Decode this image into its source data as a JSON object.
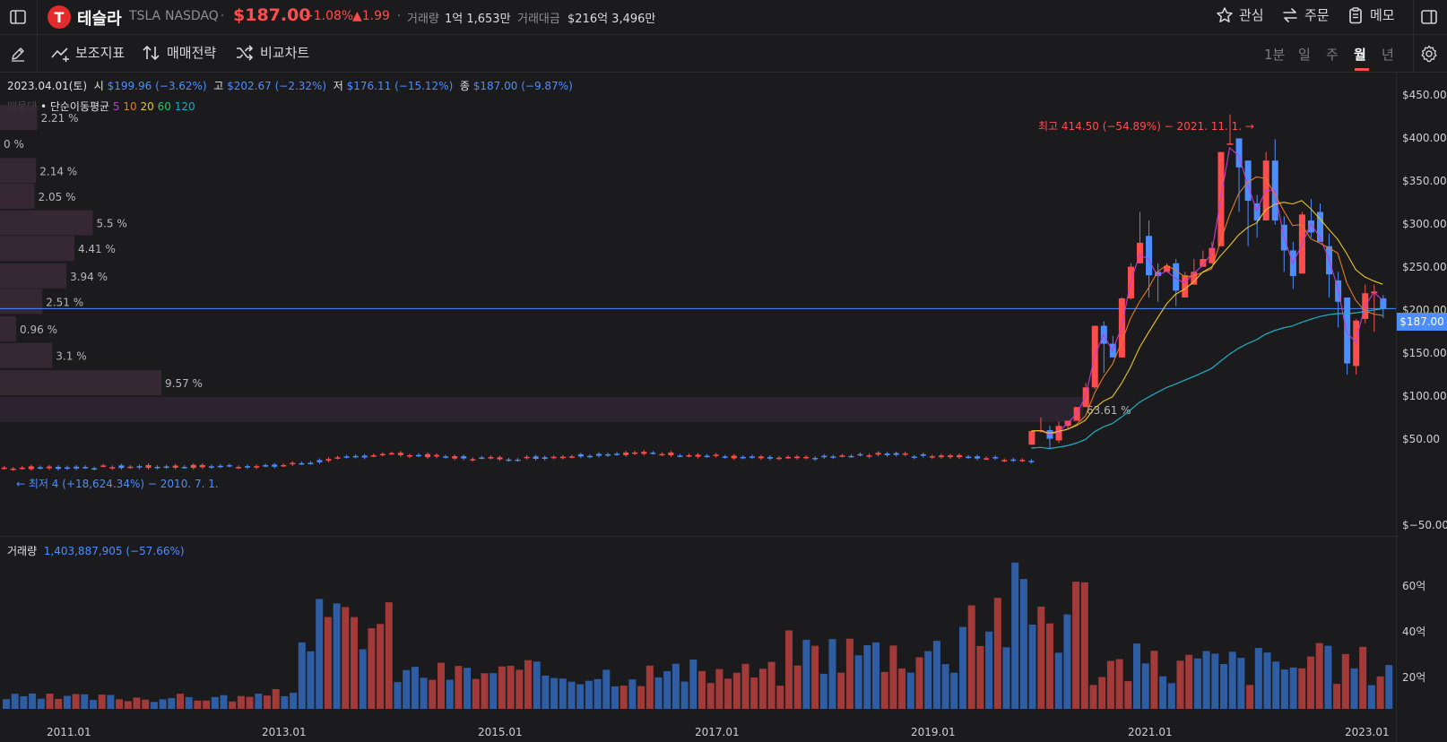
{
  "header": {
    "name": "테슬라",
    "ticker": "TSLA",
    "exchange": "NASDAQ",
    "price": "$187.00",
    "change_pct": "+1.08%",
    "change_abs": "▲1.99",
    "volume_label": "거래량",
    "volume_value": "1억 1,653만",
    "amount_label": "거래대금",
    "amount_value": "$216억 3,496만",
    "actions": [
      {
        "label": "관심",
        "icon": "star-icon"
      },
      {
        "label": "주문",
        "icon": "swap-icon"
      },
      {
        "label": "메모",
        "icon": "clipboard-icon"
      }
    ],
    "up_color": "#ff4d4d",
    "down_color": "#4c8dff"
  },
  "toolbar": {
    "indicators_label": "보조지표",
    "strategy_label": "매매전략",
    "compare_label": "비교차트",
    "periods": [
      "1분",
      "일",
      "주",
      "월",
      "년"
    ],
    "active_period": "월"
  },
  "ohlc": {
    "date": "2023.04.01(토)",
    "open_label": "시",
    "open": "$199.96 (−3.62%)",
    "high_label": "고",
    "high": "$202.67 (−2.32%)",
    "low_label": "저",
    "low": "$176.11 (−15.12%)",
    "close_label": "종",
    "close": "$187.00 (−9.87%)"
  },
  "ma_legend": {
    "prefix": "매물대",
    "label": "• 단순이동평균",
    "periods": [
      {
        "p": "5",
        "color": "#c13bd1"
      },
      {
        "p": "10",
        "color": "#e07b27"
      },
      {
        "p": "20",
        "color": "#e7c42b"
      },
      {
        "p": "60",
        "color": "#22c55e"
      },
      {
        "p": "120",
        "color": "#1fa6c9"
      }
    ]
  },
  "annotations": {
    "high": "최고 414.50 (−54.89%) − 2021. 11. 1. →",
    "low": "← 최저 4 (+18,624.34%) − 2010. 7. 1.",
    "current_price": "$187.00"
  },
  "price_axis": {
    "ticks": [
      "$450.00",
      "$400.00",
      "$350.00",
      "$300.00",
      "$250.00",
      "$200.00",
      "$150.00",
      "$100.00",
      "$50.00",
      "$−50.00"
    ],
    "range": [
      -50,
      460
    ]
  },
  "x_axis": {
    "ticks": [
      "2011.01",
      "2013.01",
      "2015.01",
      "2017.01",
      "2019.01",
      "2021.01",
      "2023.01"
    ]
  },
  "volume_pane": {
    "label": "거래량",
    "value": "1,403,887,905 (−57.66%)",
    "ticks": [
      "60억",
      "40억",
      "20억"
    ]
  },
  "chart_data": {
    "type": "bar",
    "title": "",
    "volume_profile": {
      "labels": [
        "2.21 %",
        "0 %",
        "2.14 %",
        "2.05 %",
        "5.5 %",
        "4.41 %",
        "3.94 %",
        "2.51 %",
        "0.96 %",
        "3.1 %",
        "9.57 %",
        "63.61 %"
      ],
      "values": [
        2.21,
        0,
        2.14,
        2.05,
        5.5,
        4.41,
        3.94,
        2.51,
        0.96,
        3.1,
        9.57,
        63.61
      ],
      "price_bands_top": [
        425,
        395,
        363,
        333,
        302,
        272,
        240,
        210,
        178,
        147,
        115,
        84
      ]
    },
    "monthly_candles_2020_2023": {
      "x": [
        "2020-01",
        "2020-02",
        "2020-03",
        "2020-04",
        "2020-05",
        "2020-06",
        "2020-07",
        "2020-08",
        "2020-09",
        "2020-10",
        "2020-11",
        "2020-12",
        "2021-01",
        "2021-02",
        "2021-03",
        "2021-04",
        "2021-05",
        "2021-06",
        "2021-07",
        "2021-08",
        "2021-09",
        "2021-10",
        "2021-11",
        "2021-12",
        "2022-01",
        "2022-02",
        "2022-03",
        "2022-04",
        "2022-05",
        "2022-06",
        "2022-07",
        "2022-08",
        "2022-09",
        "2022-10",
        "2022-11",
        "2022-12",
        "2023-01",
        "2023-02",
        "2023-03",
        "2023-04"
      ],
      "open": [
        28,
        44,
        45,
        33,
        50,
        56,
        72,
        95,
        167,
        146,
        130,
        199,
        240,
        272,
        230,
        230,
        240,
        200,
        215,
        236,
        240,
        260,
        380,
        386,
        360,
        310,
        290,
        360,
        285,
        255,
        228,
        290,
        300,
        260,
        220,
        200,
        120,
        175,
        205,
        199
      ],
      "high": [
        44,
        60,
        50,
        55,
        56,
        72,
        100,
        167,
        172,
        155,
        200,
        240,
        300,
        290,
        240,
        240,
        245,
        230,
        245,
        255,
        265,
        370,
        414,
        385,
        360,
        320,
        370,
        385,
        295,
        265,
        300,
        315,
        310,
        275,
        230,
        200,
        175,
        215,
        215,
        203
      ],
      "low": [
        28,
        42,
        24,
        30,
        47,
        56,
        72,
        93,
        112,
        130,
        130,
        198,
        240,
        200,
        195,
        230,
        190,
        200,
        215,
        236,
        240,
        260,
        380,
        300,
        260,
        270,
        290,
        285,
        230,
        210,
        228,
        270,
        265,
        200,
        165,
        110,
        110,
        170,
        160,
        176
      ],
      "close": [
        44,
        45,
        35,
        50,
        56,
        72,
        95,
        167,
        146,
        130,
        199,
        236,
        264,
        226,
        225,
        237,
        208,
        226,
        230,
        245,
        258,
        370,
        380,
        352,
        313,
        290,
        360,
        290,
        255,
        225,
        297,
        276,
        265,
        227,
        195,
        123,
        173,
        205,
        207,
        187
      ]
    },
    "volume_bar_count": 160,
    "volume_ylim_billions": [
      0,
      72
    ]
  }
}
